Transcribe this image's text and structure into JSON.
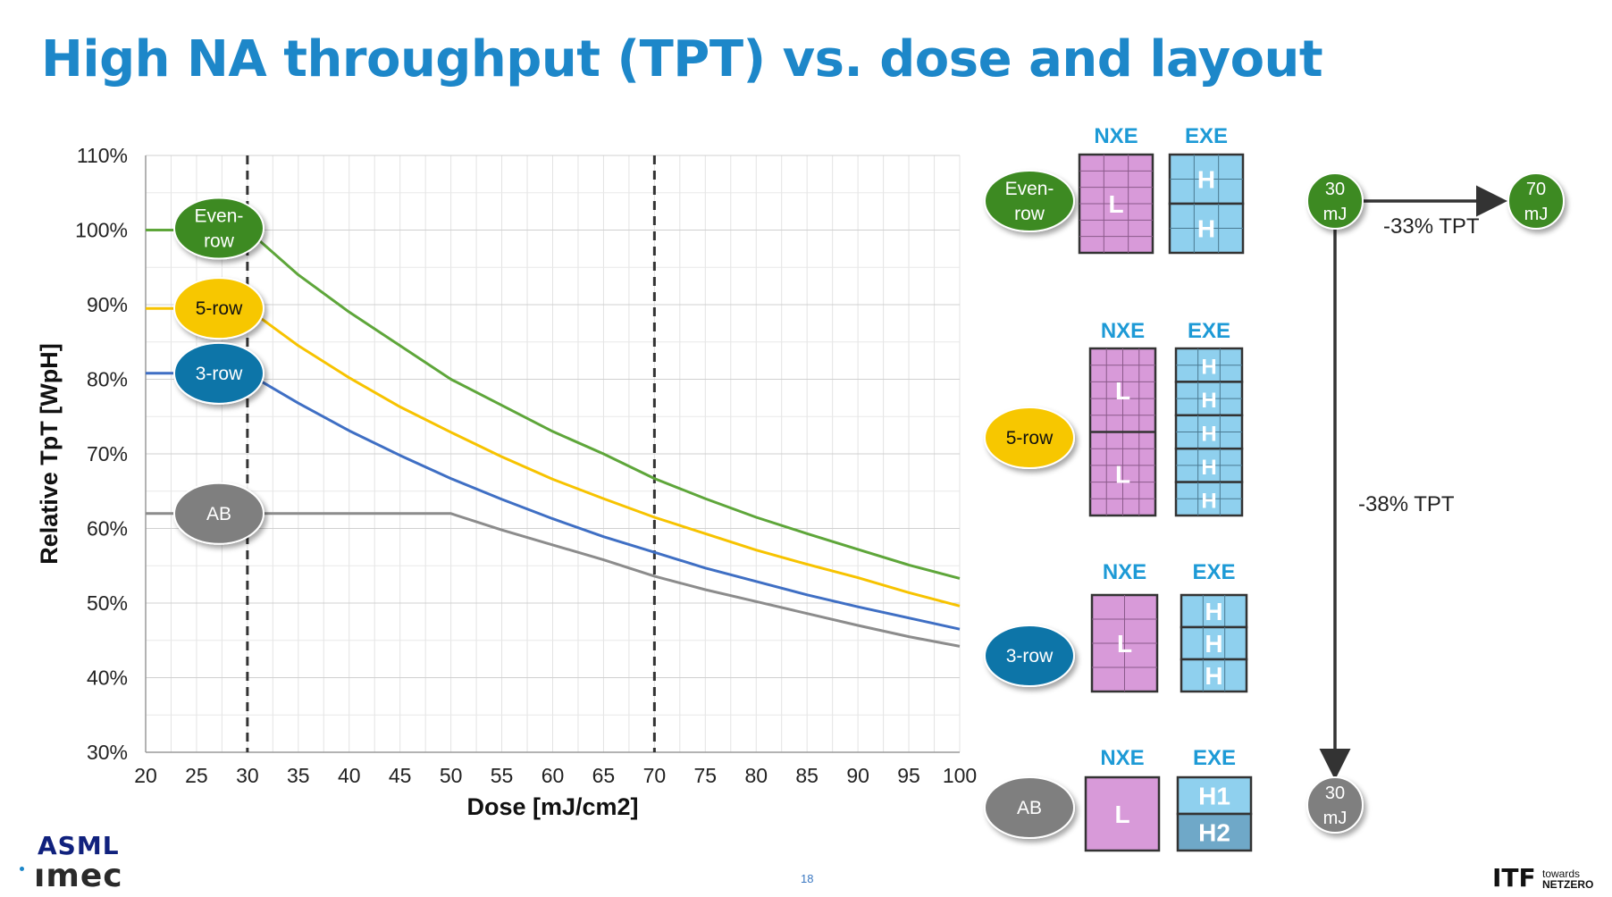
{
  "slide": {
    "title": "High NA throughput (TPT) vs. dose and layout",
    "page_number": "18",
    "logos": {
      "asml": "ASML",
      "imec": "ımec",
      "itf": "ITF",
      "itf_sub1": "towards",
      "itf_sub2": "NETZERO"
    }
  },
  "chart_data": {
    "type": "line",
    "title": "",
    "xlabel": "Dose [mJ/cm2]",
    "ylabel": "Relative TpT [WpH]",
    "xlim": [
      20,
      100
    ],
    "ylim": [
      30,
      110
    ],
    "x_ticks": [
      20,
      25,
      30,
      35,
      40,
      45,
      50,
      55,
      60,
      65,
      70,
      75,
      80,
      85,
      90,
      95,
      100
    ],
    "y_ticks": [
      "30%",
      "40%",
      "50%",
      "60%",
      "70%",
      "80%",
      "90%",
      "100%",
      "110%"
    ],
    "grid": true,
    "reference_lines_x": [
      30,
      70
    ],
    "x": [
      20,
      25,
      30,
      35,
      40,
      45,
      50,
      55,
      60,
      65,
      70,
      75,
      80,
      85,
      90,
      95,
      100
    ],
    "series": [
      {
        "name": "Even-row",
        "color": "#5ea63a",
        "label_color": "#3c8a22",
        "values": [
          100,
          100,
          100,
          94,
          89,
          84.5,
          80,
          76.5,
          73,
          70,
          66.7,
          64,
          61.5,
          59.3,
          57.2,
          55.1,
          53.3
        ]
      },
      {
        "name": "5-row",
        "color": "#f7c300",
        "label_color": "#f7c700",
        "values": [
          89.5,
          89.5,
          89.5,
          84.5,
          80.2,
          76.3,
          72.9,
          69.6,
          66.6,
          64,
          61.5,
          59.3,
          57.1,
          55.2,
          53.4,
          51.4,
          49.6
        ]
      },
      {
        "name": "3-row",
        "color": "#3f6fc4",
        "label_color": "#0e74a8",
        "values": [
          80.8,
          80.8,
          80.8,
          76.8,
          73.1,
          69.8,
          66.7,
          63.9,
          61.3,
          58.9,
          56.8,
          54.7,
          52.9,
          51.1,
          49.5,
          48,
          46.5
        ]
      },
      {
        "name": "AB",
        "color": "#8c8c8c",
        "label_color": "#7f7f7f",
        "values": [
          62,
          62,
          62,
          62,
          62,
          62,
          62,
          59.8,
          57.8,
          55.8,
          53.6,
          51.8,
          50.2,
          48.6,
          47,
          45.5,
          44.2
        ]
      }
    ]
  },
  "layouts": {
    "nxe_label": "NXE",
    "exe_label": "EXE",
    "rows": [
      {
        "name": "Even-\nrow",
        "nxe_cells": [
          "L"
        ],
        "exe_cells": [
          "H",
          "H"
        ]
      },
      {
        "name": "5-row",
        "nxe_cells": [
          "L",
          "L"
        ],
        "exe_cells": [
          "H",
          "H",
          "H",
          "H",
          "H"
        ]
      },
      {
        "name": "3-row",
        "nxe_cells": [
          "L"
        ],
        "exe_cells": [
          "H",
          "H",
          "H"
        ]
      },
      {
        "name": "AB",
        "nxe_cells": [
          "L"
        ],
        "exe_cells": [
          "H1",
          "H2"
        ]
      }
    ]
  },
  "dose_annotations": {
    "start": "30\nmJ",
    "end": "70\nmJ",
    "bottom": "30\nmJ",
    "horizontal_delta": "-33% TPT",
    "vertical_delta": "-38% TPT"
  }
}
